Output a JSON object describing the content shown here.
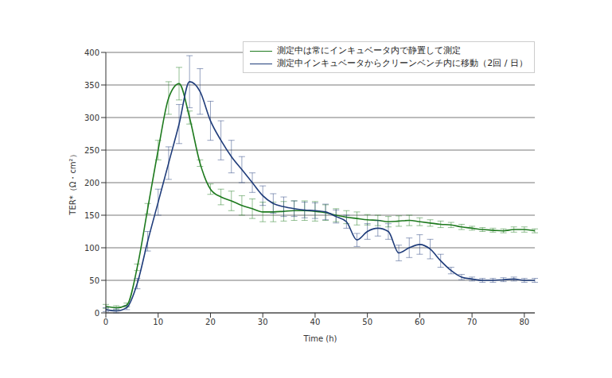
{
  "chart_data": {
    "type": "line",
    "x_label": "Time (h)",
    "y_label": "TER*（Ω・cm²）",
    "x": [
      0,
      2,
      4,
      6,
      8,
      10,
      12,
      14,
      16,
      18,
      20,
      22,
      24,
      26,
      28,
      30,
      32,
      34,
      36,
      38,
      40,
      42,
      44,
      46,
      48,
      50,
      52,
      54,
      56,
      58,
      60,
      62,
      64,
      66,
      68,
      70,
      72,
      74,
      76,
      78,
      80,
      82
    ],
    "series": [
      {
        "name": "測定中は常にインキュベータ内で静置して測定",
        "color": "#1e7a1e",
        "marker": "none",
        "line_style": "solid",
        "values": [
          10,
          8,
          12,
          70,
          160,
          250,
          330,
          352,
          300,
          230,
          190,
          178,
          172,
          165,
          160,
          155,
          155,
          156,
          157,
          157,
          156,
          154,
          150,
          147,
          145,
          143,
          142,
          140,
          141,
          142,
          140,
          138,
          136,
          135,
          132,
          130,
          128,
          127,
          126,
          128,
          128,
          126
        ],
        "errors": [
          3,
          3,
          3,
          5,
          8,
          15,
          25,
          25,
          10,
          5,
          8,
          12,
          15,
          15,
          15,
          15,
          15,
          15,
          15,
          15,
          15,
          12,
          10,
          10,
          10,
          8,
          8,
          8,
          8,
          8,
          6,
          5,
          5,
          4,
          4,
          3,
          3,
          3,
          3,
          4,
          4,
          3
        ]
      },
      {
        "name": "測定中インキュベータからクリーンベンチ内に移動（2回 / 日）",
        "color": "#1f3c7a",
        "marker": "none",
        "line_style": "solid",
        "values": [
          5,
          3,
          8,
          45,
          110,
          170,
          230,
          290,
          355,
          340,
          295,
          265,
          240,
          220,
          200,
          180,
          168,
          163,
          160,
          158,
          157,
          155,
          148,
          140,
          112,
          125,
          130,
          125,
          92,
          100,
          105,
          98,
          80,
          65,
          55,
          52,
          50,
          50,
          51,
          52,
          50,
          50
        ],
        "errors": [
          3,
          3,
          3,
          8,
          15,
          20,
          25,
          30,
          40,
          35,
          30,
          30,
          25,
          20,
          15,
          15,
          15,
          15,
          12,
          12,
          12,
          12,
          10,
          10,
          10,
          12,
          12,
          12,
          12,
          15,
          15,
          15,
          10,
          5,
          4,
          3,
          3,
          3,
          3,
          3,
          3,
          3
        ]
      }
    ],
    "xlim": [
      0,
      82
    ],
    "xticks": [
      0,
      10,
      20,
      30,
      40,
      50,
      60,
      70,
      80
    ],
    "ylim": [
      0,
      400
    ],
    "yticks": [
      0,
      50,
      100,
      150,
      200,
      250,
      300,
      350,
      400
    ],
    "grid": true,
    "legend": "upper right"
  }
}
